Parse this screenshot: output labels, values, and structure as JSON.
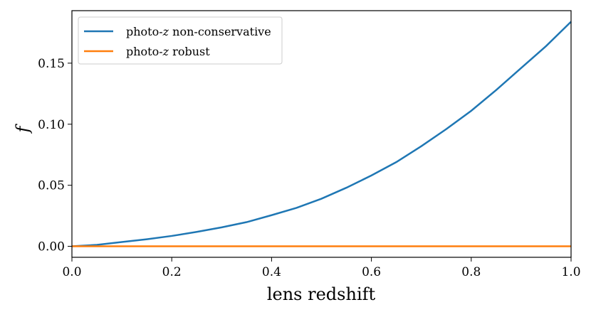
{
  "chart_data": {
    "type": "line",
    "xlabel": "lens redshift",
    "ylabel": "f",
    "xlim": [
      0.0,
      1.0
    ],
    "ylim": [
      -0.009,
      0.193
    ],
    "xticks": [
      0.0,
      0.2,
      0.4,
      0.6,
      0.8,
      1.0
    ],
    "xtick_labels": [
      "0.0",
      "0.2",
      "0.4",
      "0.6",
      "0.8",
      "1.0"
    ],
    "yticks": [
      0.0,
      0.05,
      0.1,
      0.15
    ],
    "ytick_labels": [
      "0.00",
      "0.05",
      "0.10",
      "0.15"
    ],
    "legend_position": "upper-left",
    "grid": false,
    "x": [
      0.0,
      0.05,
      0.1,
      0.15,
      0.2,
      0.25,
      0.3,
      0.35,
      0.4,
      0.45,
      0.5,
      0.55,
      0.6,
      0.65,
      0.7,
      0.75,
      0.8,
      0.85,
      0.9,
      0.95,
      1.0
    ],
    "series": [
      {
        "name_prefix": "photo-",
        "name_var": "z",
        "name_suffix": " non-conservative",
        "color": "#1f77b4",
        "values": [
          0.0,
          0.0012,
          0.0035,
          0.0058,
          0.0085,
          0.0118,
          0.0155,
          0.0198,
          0.0255,
          0.0315,
          0.039,
          0.048,
          0.058,
          0.069,
          0.082,
          0.096,
          0.111,
          0.128,
          0.146,
          0.164,
          0.184
        ]
      },
      {
        "name_prefix": "photo-",
        "name_var": "z",
        "name_suffix": " robust",
        "color": "#ff7f0e",
        "values": [
          0.0,
          0.0,
          0.0,
          0.0,
          0.0,
          0.0,
          0.0,
          0.0,
          0.0,
          0.0,
          0.0,
          0.0,
          0.0,
          0.0,
          0.0,
          0.0,
          0.0,
          0.0,
          0.0,
          0.0,
          0.0
        ]
      }
    ]
  }
}
